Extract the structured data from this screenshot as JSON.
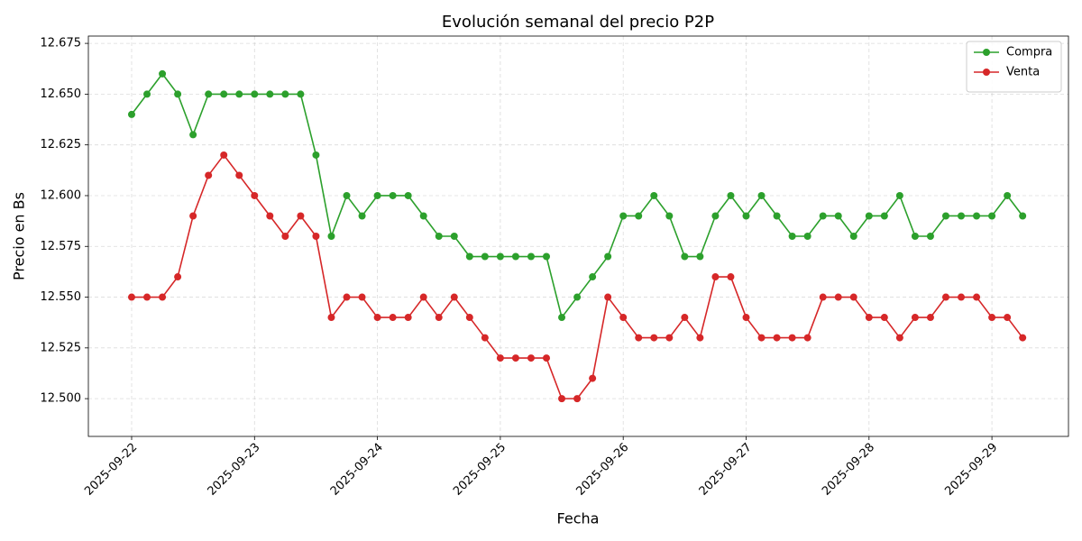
{
  "chart_data": {
    "type": "line",
    "title": "Evolución semanal del precio P2P",
    "x_label": "Fecha",
    "y_label": "Precio en Bs",
    "x": [
      "2025-09-22T00:00",
      "2025-09-22T03:00",
      "2025-09-22T06:00",
      "2025-09-22T09:00",
      "2025-09-22T12:00",
      "2025-09-22T15:00",
      "2025-09-22T18:00",
      "2025-09-22T21:00",
      "2025-09-23T00:00",
      "2025-09-23T03:00",
      "2025-09-23T06:00",
      "2025-09-23T09:00",
      "2025-09-23T12:00",
      "2025-09-23T15:00",
      "2025-09-23T18:00",
      "2025-09-23T21:00",
      "2025-09-24T00:00",
      "2025-09-24T03:00",
      "2025-09-24T06:00",
      "2025-09-24T09:00",
      "2025-09-24T12:00",
      "2025-09-24T15:00",
      "2025-09-24T18:00",
      "2025-09-24T21:00",
      "2025-09-25T00:00",
      "2025-09-25T03:00",
      "2025-09-25T06:00",
      "2025-09-25T09:00",
      "2025-09-25T12:00",
      "2025-09-25T15:00",
      "2025-09-25T18:00",
      "2025-09-25T21:00",
      "2025-09-26T00:00",
      "2025-09-26T03:00",
      "2025-09-26T06:00",
      "2025-09-26T09:00",
      "2025-09-26T12:00",
      "2025-09-26T15:00",
      "2025-09-26T18:00",
      "2025-09-26T21:00",
      "2025-09-27T00:00",
      "2025-09-27T03:00",
      "2025-09-27T06:00",
      "2025-09-27T09:00",
      "2025-09-27T12:00",
      "2025-09-27T15:00",
      "2025-09-27T18:00",
      "2025-09-27T21:00",
      "2025-09-28T00:00",
      "2025-09-28T03:00",
      "2025-09-28T06:00",
      "2025-09-28T09:00",
      "2025-09-28T12:00",
      "2025-09-28T15:00",
      "2025-09-28T18:00",
      "2025-09-28T21:00",
      "2025-09-29T00:00",
      "2025-09-29T03:00",
      "2025-09-29T06:00"
    ],
    "series": [
      {
        "name": "Compra",
        "color": "#2ca02c",
        "values": [
          12.64,
          12.65,
          12.66,
          12.65,
          12.63,
          12.65,
          12.65,
          12.65,
          12.65,
          12.65,
          12.65,
          12.65,
          12.62,
          12.58,
          12.6,
          12.59,
          12.6,
          12.6,
          12.6,
          12.59,
          12.58,
          12.58,
          12.57,
          12.57,
          12.57,
          12.57,
          12.57,
          12.57,
          12.54,
          12.55,
          12.56,
          12.57,
          12.59,
          12.59,
          12.6,
          12.59,
          12.57,
          12.57,
          12.59,
          12.6,
          12.59,
          12.6,
          12.59,
          12.58,
          12.58,
          12.59,
          12.59,
          12.58,
          12.59,
          12.59,
          12.6,
          12.58,
          12.58,
          12.59,
          12.59,
          12.59,
          12.59,
          12.6,
          12.59
        ]
      },
      {
        "name": "Venta",
        "color": "#d62728",
        "values": [
          12.55,
          12.55,
          12.55,
          12.56,
          12.59,
          12.61,
          12.62,
          12.61,
          12.6,
          12.59,
          12.58,
          12.59,
          12.58,
          12.54,
          12.55,
          12.55,
          12.54,
          12.54,
          12.54,
          12.55,
          12.54,
          12.55,
          12.54,
          12.53,
          12.52,
          12.52,
          12.52,
          12.52,
          12.5,
          12.5,
          12.51,
          12.55,
          12.54,
          12.53,
          12.53,
          12.53,
          12.54,
          12.53,
          12.56,
          12.56,
          12.54,
          12.53,
          12.53,
          12.53,
          12.53,
          12.55,
          12.55,
          12.55,
          12.54,
          12.54,
          12.53,
          12.54,
          12.54,
          12.55,
          12.55,
          12.55,
          12.54,
          12.54,
          12.53
        ]
      }
    ],
    "xlim": [
      "2025-09-21T15:33",
      "2025-09-29T14:57"
    ],
    "xticks": [
      "2025-09-22",
      "2025-09-23",
      "2025-09-24",
      "2025-09-25",
      "2025-09-26",
      "2025-09-27",
      "2025-09-28",
      "2025-09-29"
    ],
    "ylim": [
      12.4814,
      12.6786
    ],
    "yticks": [
      {
        "value": 12.5,
        "label": "12.500"
      },
      12.525,
      {
        "value": 12.55,
        "label": "12.550"
      },
      12.575,
      {
        "value": 12.6,
        "label": "12.600"
      },
      12.625,
      {
        "value": 12.65,
        "label": "12.650"
      },
      12.675
    ],
    "grid": true,
    "legend": "upper right"
  }
}
